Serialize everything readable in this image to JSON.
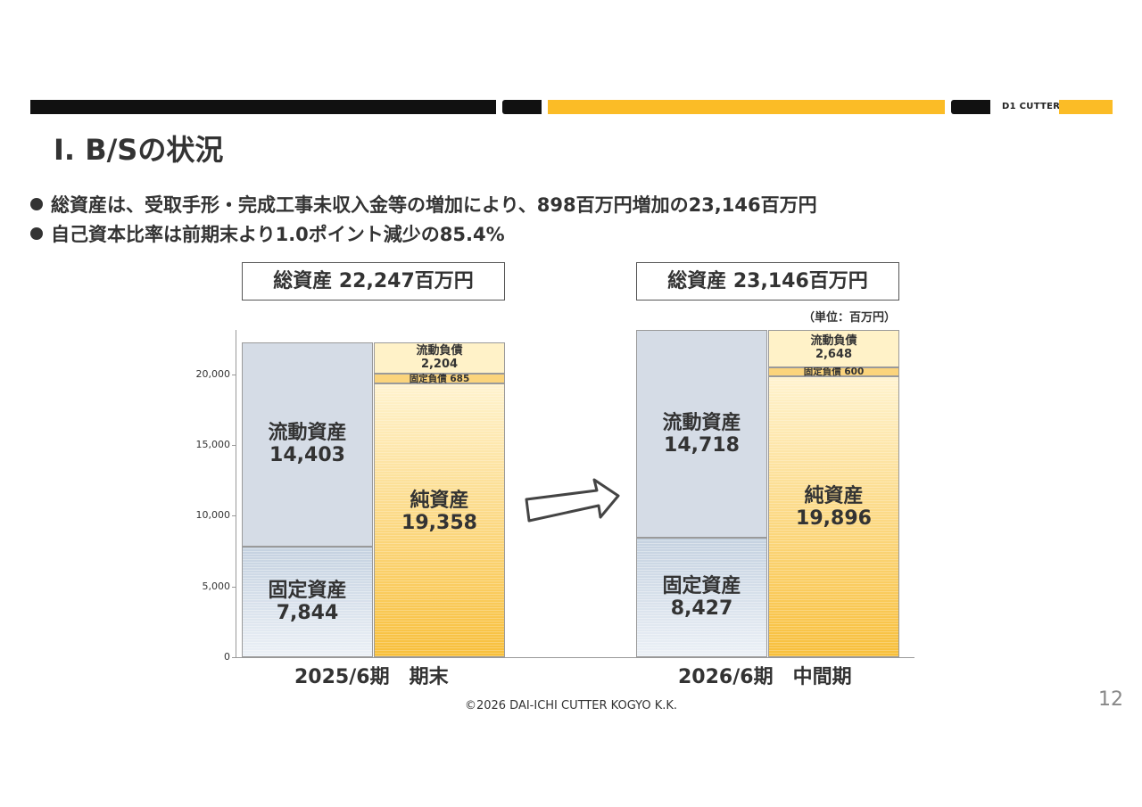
{
  "header": {
    "logo_text": "D1 CUTTER",
    "colors": {
      "dark": "#111111",
      "accent": "#fbbc26"
    }
  },
  "page_title": "Ⅰ. B/Sの状況",
  "bullets": [
    "総資産は、受取手形・完成工事未収入金等の増加により、898百万円増加の23,146百万円",
    "自己資本比率は前期末より1.0ポイント減少の85.4%"
  ],
  "unit_label": "（単位：百万円）",
  "chart_data": {
    "type": "bar",
    "stacked": true,
    "unit": "百万円",
    "ylim": [
      0,
      23146
    ],
    "yticks": [
      "0",
      "5,000",
      "10,000",
      "15,000",
      "20,000"
    ],
    "ytick_values": [
      0,
      5000,
      10000,
      15000,
      20000
    ],
    "periods": [
      {
        "label": "2025/6期　期末",
        "total_label": "総資産 22,247百万円",
        "assets": [
          {
            "name": "固定資産",
            "value": 7844,
            "value_label": "7,844"
          },
          {
            "name": "流動資産",
            "value": 14403,
            "value_label": "14,403"
          }
        ],
        "liabilities": [
          {
            "name": "純資産",
            "value": 19358,
            "value_label": "19,358"
          },
          {
            "name": "固定負債",
            "value": 685,
            "value_label": "685"
          },
          {
            "name": "流動負債",
            "value": 2204,
            "value_label": "2,204"
          }
        ]
      },
      {
        "label": "2026/6期　中間期",
        "total_label": "総資産 23,146百万円",
        "assets": [
          {
            "name": "固定資産",
            "value": 8427,
            "value_label": "8,427"
          },
          {
            "name": "流動資産",
            "value": 14718,
            "value_label": "14,718"
          }
        ],
        "liabilities": [
          {
            "name": "純資産",
            "value": 19896,
            "value_label": "19,896"
          },
          {
            "name": "固定負債",
            "value": 600,
            "value_label": "600"
          },
          {
            "name": "流動負債",
            "value": 2648,
            "value_label": "2,648"
          }
        ]
      }
    ]
  },
  "footer": {
    "copyright": "©2026 DAI-ICHI CUTTER KOGYO K.K.",
    "page_number": "12"
  }
}
